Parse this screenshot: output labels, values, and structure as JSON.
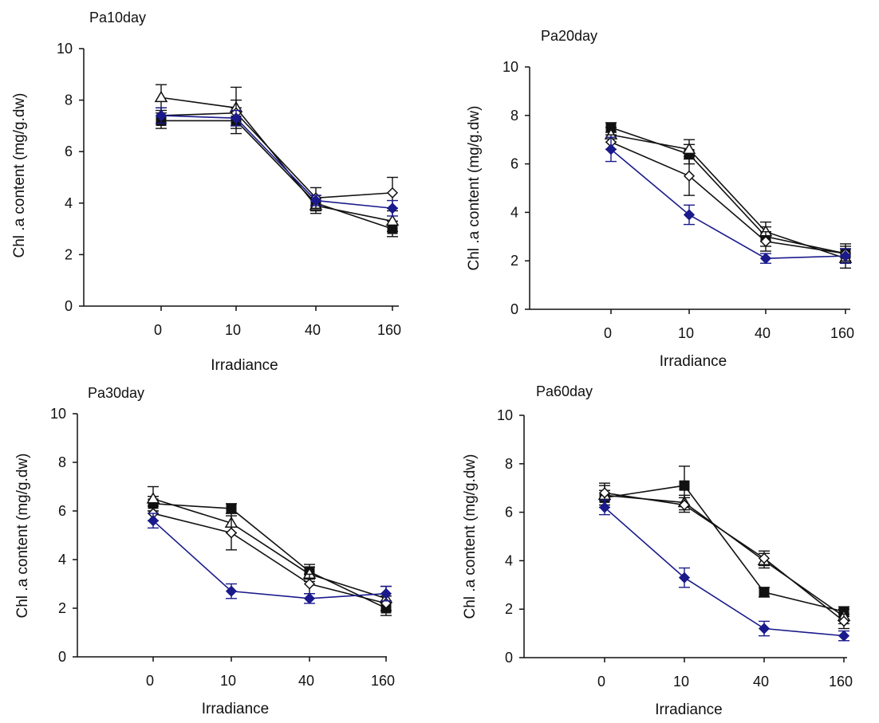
{
  "colors": {
    "axis": "#111111",
    "highlight": "#1a1a8c",
    "black": "#111111"
  },
  "chart_data": [
    {
      "type": "line",
      "title": "Pa10day",
      "xlabel": "Irradiance",
      "ylabel": "Chl .a content (mg/g.dw)",
      "categories": [
        "0",
        "10",
        "40",
        "160"
      ],
      "ylim": [
        0,
        10
      ],
      "yticks": [
        "0",
        "2",
        "4",
        "6",
        "8",
        "10"
      ],
      "series": [
        {
          "marker": "diamond-filled",
          "color": "#1a1a8c",
          "values": [
            7.4,
            7.3,
            4.1,
            3.8
          ],
          "errors": [
            0.3,
            0.3,
            0.2,
            0.3
          ]
        },
        {
          "marker": "square-filled",
          "color": "#111111",
          "values": [
            7.2,
            7.2,
            4.0,
            3.0
          ],
          "errors": [
            0.3,
            0.5,
            0.3,
            0.3
          ]
        },
        {
          "marker": "triangle-open",
          "color": "#111111",
          "values": [
            8.1,
            7.7,
            3.9,
            3.3
          ],
          "errors": [
            0.5,
            0.8,
            0.3,
            0.4
          ]
        },
        {
          "marker": "diamond-open",
          "color": "#111111",
          "values": [
            7.4,
            7.5,
            4.2,
            4.4
          ],
          "errors": [
            0.3,
            0.5,
            0.4,
            0.6
          ]
        }
      ]
    },
    {
      "type": "line",
      "title": "Pa20day",
      "xlabel": "Irradiance",
      "ylabel": "Chl .a content (mg/g.dw)",
      "categories": [
        "0",
        "10",
        "40",
        "160"
      ],
      "ylim": [
        0,
        10
      ],
      "yticks": [
        "0",
        "2",
        "4",
        "6",
        "8",
        "10"
      ],
      "series": [
        {
          "marker": "diamond-filled",
          "color": "#1a1a8c",
          "values": [
            6.6,
            3.9,
            2.1,
            2.2
          ],
          "errors": [
            0.5,
            0.4,
            0.2,
            0.3
          ]
        },
        {
          "marker": "square-filled",
          "color": "#111111",
          "values": [
            7.5,
            6.4,
            3.0,
            2.3
          ],
          "errors": [
            0.2,
            0.4,
            0.4,
            0.4
          ]
        },
        {
          "marker": "triangle-open",
          "color": "#111111",
          "values": [
            7.2,
            6.6,
            3.2,
            2.1
          ],
          "errors": [
            0.3,
            0.4,
            0.4,
            0.4
          ]
        },
        {
          "marker": "diamond-open",
          "color": "#111111",
          "values": [
            6.9,
            5.5,
            2.8,
            2.3
          ],
          "errors": [
            0.3,
            0.8,
            0.4,
            0.3
          ]
        }
      ]
    },
    {
      "type": "line",
      "title": "Pa30day",
      "xlabel": "Irradiance",
      "ylabel": "Chl .a content (mg/g.dw)",
      "categories": [
        "0",
        "10",
        "40",
        "160"
      ],
      "ylim": [
        0,
        10
      ],
      "yticks": [
        "0",
        "2",
        "4",
        "6",
        "8",
        "10"
      ],
      "series": [
        {
          "marker": "diamond-filled",
          "color": "#1a1a8c",
          "values": [
            5.6,
            2.7,
            2.4,
            2.6
          ],
          "errors": [
            0.3,
            0.3,
            0.2,
            0.3
          ]
        },
        {
          "marker": "square-filled",
          "color": "#111111",
          "values": [
            6.3,
            6.1,
            3.5,
            2.0
          ],
          "errors": [
            0.3,
            0.2,
            0.3,
            0.3
          ]
        },
        {
          "marker": "triangle-open",
          "color": "#111111",
          "values": [
            6.5,
            5.5,
            3.4,
            2.4
          ],
          "errors": [
            0.5,
            0.4,
            0.3,
            0.5
          ]
        },
        {
          "marker": "diamond-open",
          "color": "#111111",
          "values": [
            5.9,
            5.1,
            3.0,
            2.2
          ],
          "errors": [
            0.3,
            0.7,
            0.4,
            0.3
          ]
        }
      ]
    },
    {
      "type": "line",
      "title": "Pa60day",
      "xlabel": "Irradiance",
      "ylabel": "Chl .a content (mg/g.dw)",
      "categories": [
        "0",
        "10",
        "40",
        "160"
      ],
      "ylim": [
        0,
        10
      ],
      "yticks": [
        "0",
        "2",
        "4",
        "6",
        "8",
        "10"
      ],
      "series": [
        {
          "marker": "diamond-filled",
          "color": "#1a1a8c",
          "values": [
            6.2,
            3.3,
            1.2,
            0.9
          ],
          "errors": [
            0.3,
            0.4,
            0.3,
            0.2
          ]
        },
        {
          "marker": "square-filled",
          "color": "#111111",
          "values": [
            6.6,
            7.1,
            2.7,
            1.9
          ],
          "errors": [
            0.3,
            0.8,
            0.2,
            0.2
          ]
        },
        {
          "marker": "triangle-open",
          "color": "#111111",
          "values": [
            6.7,
            6.4,
            4.0,
            1.7
          ],
          "errors": [
            0.5,
            0.3,
            0.3,
            0.3
          ]
        },
        {
          "marker": "diamond-open",
          "color": "#111111",
          "values": [
            6.8,
            6.3,
            4.1,
            1.5
          ],
          "errors": [
            0.3,
            0.3,
            0.3,
            0.3
          ]
        }
      ]
    }
  ]
}
